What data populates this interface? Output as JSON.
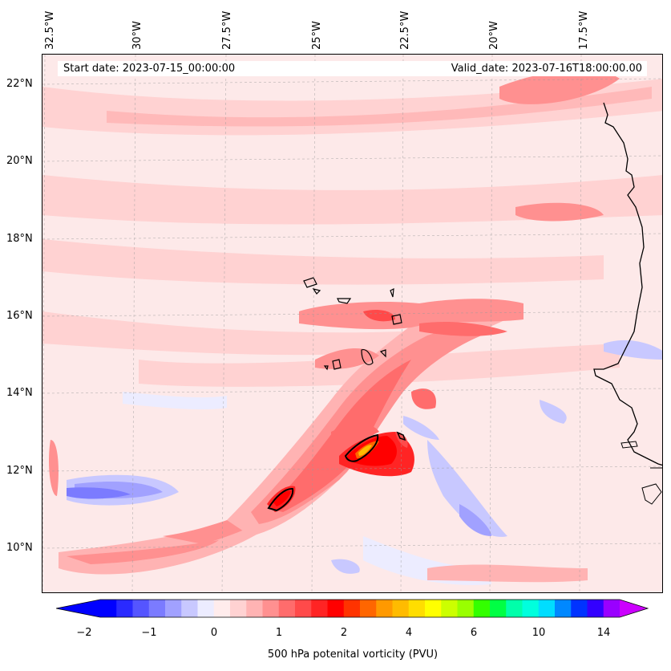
{
  "map": {
    "title_left": "Start date: 2023-07-15_00:00:00",
    "title_right": "Valid_date: 2023-07-16T18:00:00.00",
    "lon_labels": [
      "32.5°W",
      "30°W",
      "27.5°W",
      "25°W",
      "22.5°W",
      "20°W",
      "17.5°W"
    ],
    "lat_labels": [
      "22°N",
      "20°N",
      "18°N",
      "16°N",
      "14°N",
      "12°N",
      "10°N"
    ],
    "gridlines": "dashed"
  },
  "colorbar": {
    "label": "500 hPa potenital vorticity (PVU)",
    "ticks": [
      "−2",
      "−1",
      "0",
      "1",
      "2",
      "4",
      "6",
      "10",
      "14"
    ],
    "colors": [
      "#0000ff",
      "#2a2aff",
      "#5555ff",
      "#7b7bff",
      "#a1a1ff",
      "#c8c8ff",
      "#ececff",
      "#ffecec",
      "#ffd2d2",
      "#ffb3b3",
      "#ff9090",
      "#ff6c6c",
      "#ff4a4a",
      "#ff2424",
      "#ff0000",
      "#ff3300",
      "#ff6600",
      "#ff9900",
      "#ffbb00",
      "#ffdd00",
      "#ffff00",
      "#ccff00",
      "#99ff00",
      "#33ff00",
      "#00ff44",
      "#00ffaa",
      "#00ffdd",
      "#00ddff",
      "#0088ff",
      "#0033ff",
      "#3300ff",
      "#9900ff"
    ],
    "extend_min_color": "#0000ff",
    "extend_max_color": "#cc00ff"
  }
}
